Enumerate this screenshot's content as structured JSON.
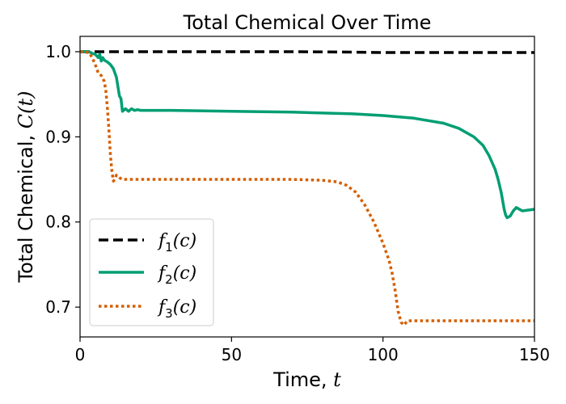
{
  "chart_data": {
    "type": "line",
    "title": "Total Chemical Over Time",
    "xlabel_text": "Time, ",
    "xlabel_var": "t",
    "ylabel_text": "Total Chemical, ",
    "ylabel_var": "C(t)",
    "xlim": [
      0,
      150
    ],
    "ylim": [
      0.665,
      1.018
    ],
    "xticks": [
      0,
      50,
      100,
      150
    ],
    "xtick_labels": [
      "0",
      "50",
      "100",
      "150"
    ],
    "yticks": [
      0.7,
      0.8,
      0.9,
      1.0
    ],
    "ytick_labels": [
      "0.7",
      "0.8",
      "0.9",
      "1.0"
    ],
    "grid": false,
    "legend_position": "bottom-left",
    "series": [
      {
        "name": "f1(c)",
        "label_base": "f",
        "label_sub": "1",
        "label_arg": "(c)",
        "color": "#000000",
        "style": "dashed",
        "x": [
          0,
          10,
          30,
          50,
          70,
          90,
          100,
          120,
          150
        ],
        "y": [
          1.0,
          1.0,
          1.0,
          1.0,
          1.0,
          0.9995,
          0.999,
          0.999,
          0.999
        ]
      },
      {
        "name": "f2(c)",
        "label_base": "f",
        "label_sub": "2",
        "label_arg": "(c)",
        "color": "#009e73",
        "style": "solid",
        "x": [
          0,
          3,
          4,
          5,
          6,
          6.5,
          7,
          7.5,
          8,
          9,
          10,
          11,
          12,
          13,
          13.5,
          14,
          15,
          16,
          17,
          18,
          19,
          20,
          30,
          50,
          70,
          90,
          100,
          110,
          120,
          125,
          130,
          133,
          135,
          137,
          138,
          139,
          140,
          140.5,
          141,
          142,
          143,
          144,
          145,
          146,
          148,
          150
        ],
        "y": [
          1.0,
          1.0,
          0.998,
          0.997,
          0.993,
          0.997,
          0.989,
          0.993,
          0.99,
          0.988,
          0.985,
          0.98,
          0.97,
          0.948,
          0.945,
          0.93,
          0.933,
          0.93,
          0.933,
          0.931,
          0.932,
          0.931,
          0.931,
          0.93,
          0.929,
          0.927,
          0.925,
          0.922,
          0.916,
          0.91,
          0.9,
          0.89,
          0.878,
          0.862,
          0.85,
          0.835,
          0.815,
          0.808,
          0.805,
          0.807,
          0.813,
          0.817,
          0.815,
          0.813,
          0.814,
          0.815
        ]
      },
      {
        "name": "f3(c)",
        "label_base": "f",
        "label_sub": "3",
        "label_arg": "(c)",
        "color": "#d55e00",
        "style": "dotted",
        "x": [
          0,
          3,
          4,
          5,
          6,
          7,
          8,
          8.5,
          9,
          9.5,
          10,
          10.5,
          11,
          11.5,
          12,
          13,
          14,
          15,
          20,
          30,
          50,
          70,
          80,
          85,
          88,
          91,
          94,
          97,
          100,
          102,
          103,
          104,
          105,
          106,
          107,
          108,
          109,
          110,
          120,
          150
        ],
        "y": [
          1.0,
          0.999,
          0.993,
          0.985,
          0.975,
          0.972,
          0.965,
          0.955,
          0.935,
          0.91,
          0.88,
          0.86,
          0.848,
          0.85,
          0.855,
          0.852,
          0.85,
          0.85,
          0.85,
          0.85,
          0.85,
          0.85,
          0.849,
          0.847,
          0.843,
          0.835,
          0.82,
          0.8,
          0.775,
          0.755,
          0.74,
          0.72,
          0.695,
          0.682,
          0.679,
          0.684,
          0.684,
          0.684,
          0.684,
          0.684
        ]
      }
    ]
  }
}
